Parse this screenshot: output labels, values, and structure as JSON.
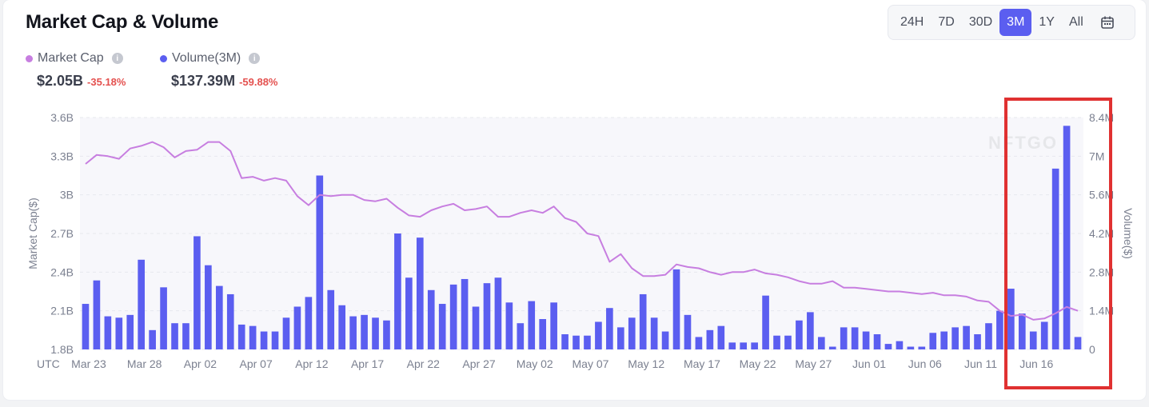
{
  "title": "Market Cap & Volume",
  "ranges": [
    {
      "label": "24H",
      "active": false
    },
    {
      "label": "7D",
      "active": false
    },
    {
      "label": "30D",
      "active": false
    },
    {
      "label": "3M",
      "active": true
    },
    {
      "label": "1Y",
      "active": false
    },
    {
      "label": "All",
      "active": false
    }
  ],
  "calendar_icon": "calendar-icon",
  "legend": {
    "market_cap": {
      "label": "Market Cap",
      "value": "$2.05B",
      "change": "-35.18%",
      "color": "#c77ee0"
    },
    "volume": {
      "label": "Volume(3M)",
      "value": "$137.39M",
      "change": "-59.88%",
      "color": "#5b5ef0"
    }
  },
  "watermark": "NFTGO",
  "highlight_color": "#e03131",
  "chart_data": {
    "type": "bar",
    "x_axis_prefix": "UTC",
    "x_tick_labels": [
      "Mar 23",
      "Mar 28",
      "Apr 02",
      "Apr 07",
      "Apr 12",
      "Apr 17",
      "Apr 22",
      "Apr 27",
      "May 02",
      "May 07",
      "May 12",
      "May 17",
      "May 22",
      "May 27",
      "Jun 01",
      "Jun 06",
      "Jun 11",
      "Jun 16"
    ],
    "y_left_label": "Market Cap($)",
    "y_left_ticks": [
      "1.8B",
      "2.1B",
      "2.4B",
      "2.7B",
      "3B",
      "3.3B",
      "3.6B"
    ],
    "y_left_range": [
      1.8,
      3.6
    ],
    "y_right_label": "Volume($)",
    "y_right_ticks": [
      "0",
      "1.4M",
      "2.8M",
      "4.2M",
      "5.6M",
      "7M",
      "8.4M"
    ],
    "y_right_range": [
      0,
      8.4
    ],
    "grid": true,
    "series": [
      {
        "name": "Volume(3M)",
        "type": "bar",
        "color": "#5b5ef0",
        "unit": "M",
        "values": [
          1.65,
          2.5,
          1.2,
          1.15,
          1.25,
          3.25,
          0.7,
          2.25,
          0.95,
          0.95,
          4.1,
          3.05,
          2.3,
          2.0,
          0.9,
          0.85,
          0.65,
          0.65,
          1.15,
          1.55,
          1.9,
          6.3,
          2.15,
          1.6,
          1.2,
          1.25,
          1.15,
          1.05,
          4.2,
          2.6,
          4.05,
          2.15,
          1.65,
          2.35,
          2.55,
          1.55,
          2.4,
          2.6,
          1.7,
          0.95,
          1.75,
          1.1,
          1.7,
          0.55,
          0.5,
          0.5,
          1.0,
          1.5,
          0.8,
          1.15,
          2.0,
          1.15,
          0.65,
          2.9,
          1.25,
          0.45,
          0.7,
          0.85,
          0.25,
          0.25,
          0.25,
          1.95,
          0.5,
          0.5,
          1.05,
          1.35,
          0.45,
          0.1,
          0.8,
          0.8,
          0.65,
          0.55,
          0.2,
          0.3,
          0.1,
          0.1,
          0.6,
          0.65,
          0.8,
          0.85,
          0.55,
          0.95,
          1.4,
          2.2,
          1.3,
          0.65,
          1.0,
          6.55,
          8.1,
          0.45
        ]
      },
      {
        "name": "Market Cap",
        "type": "line",
        "color": "#c77ee0",
        "unit": "B",
        "values": [
          3.24,
          3.31,
          3.3,
          3.28,
          3.36,
          3.38,
          3.41,
          3.37,
          3.29,
          3.34,
          3.35,
          3.41,
          3.41,
          3.34,
          3.13,
          3.14,
          3.11,
          3.13,
          3.11,
          2.99,
          2.92,
          3.0,
          2.99,
          3.0,
          3.0,
          2.96,
          2.95,
          2.97,
          2.9,
          2.84,
          2.83,
          2.88,
          2.91,
          2.93,
          2.88,
          2.89,
          2.91,
          2.83,
          2.83,
          2.86,
          2.88,
          2.86,
          2.91,
          2.82,
          2.79,
          2.7,
          2.68,
          2.48,
          2.54,
          2.43,
          2.37,
          2.37,
          2.38,
          2.46,
          2.44,
          2.43,
          2.4,
          2.38,
          2.4,
          2.4,
          2.42,
          2.39,
          2.38,
          2.36,
          2.33,
          2.31,
          2.31,
          2.33,
          2.28,
          2.28,
          2.27,
          2.26,
          2.25,
          2.25,
          2.24,
          2.23,
          2.24,
          2.22,
          2.22,
          2.21,
          2.18,
          2.17,
          2.1,
          2.06,
          2.07,
          2.03,
          2.04,
          2.08,
          2.13,
          2.1
        ]
      }
    ]
  }
}
